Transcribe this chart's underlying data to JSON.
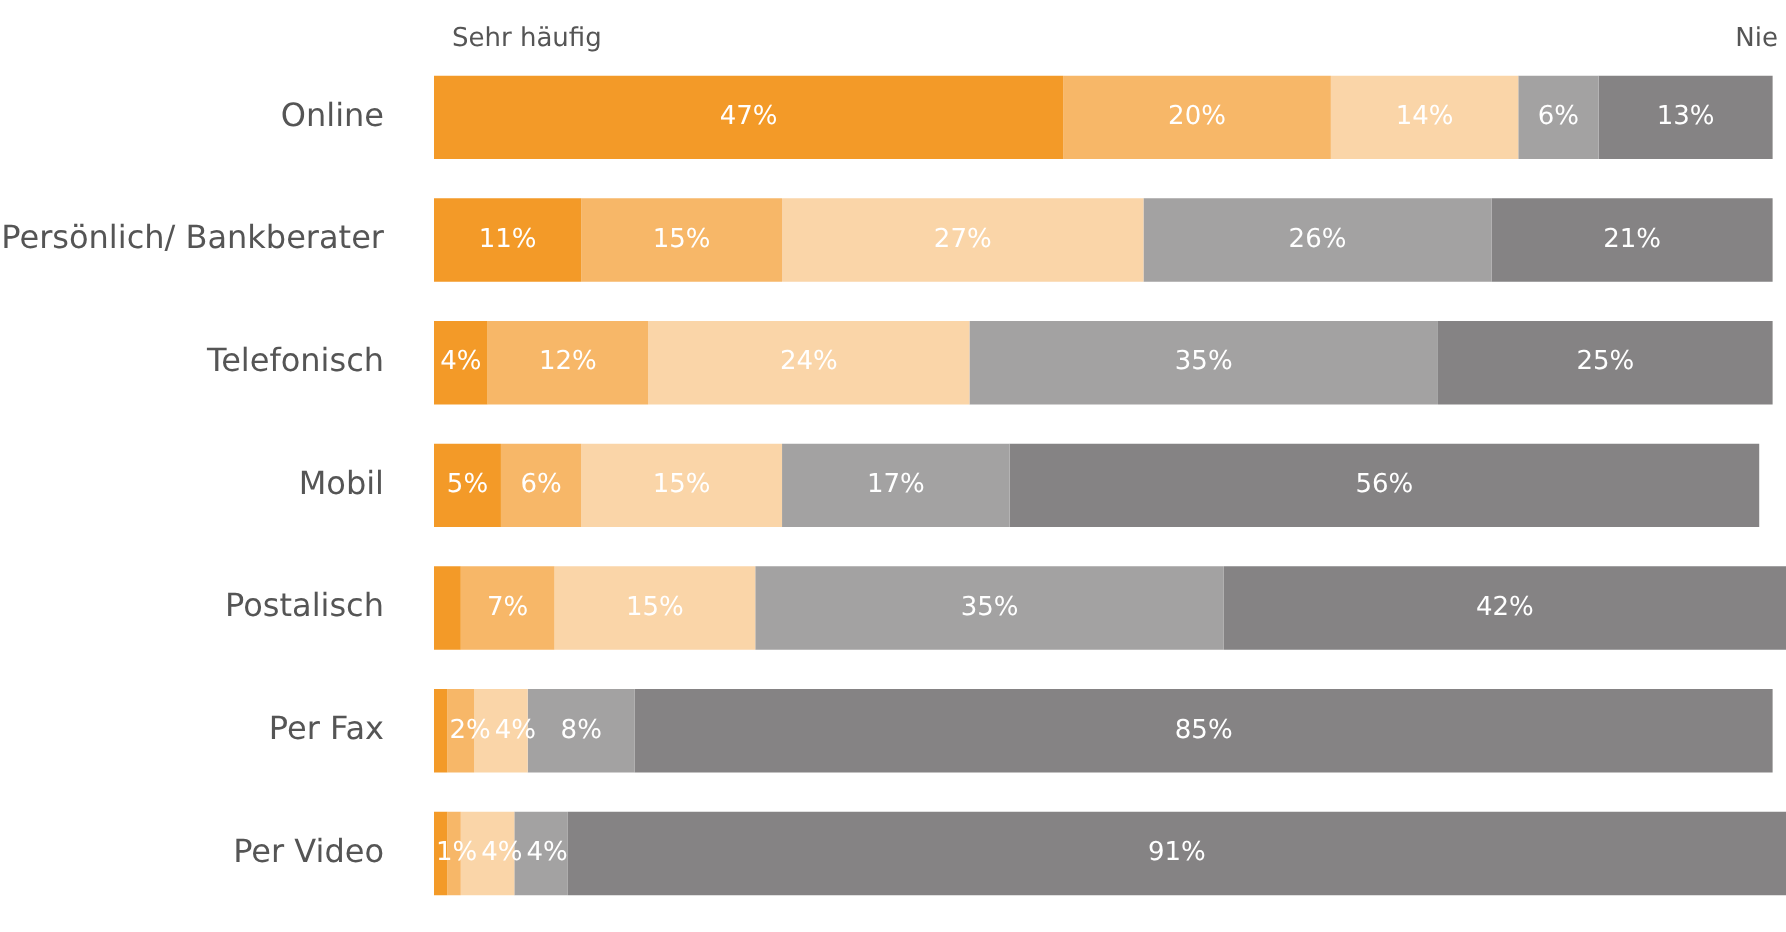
{
  "chart_data": {
    "type": "bar",
    "orientation": "horizontal",
    "stacked": true,
    "legend": false,
    "tick_labels": "y",
    "categories": [
      "Online",
      "Persönlich/ Bankberater",
      "Telefonisch",
      "Mobil",
      "Postalisch",
      "Per Fax",
      "Per Video"
    ],
    "annotations": [
      "Sehr häufig",
      "Nie"
    ],
    "series": [
      {
        "color": "#f39a28",
        "values": [
          47,
          11,
          4,
          5,
          2,
          1,
          1
        ],
        "value_labels": [
          "47%",
          "11%",
          "4%",
          "5%",
          null,
          null,
          "1%"
        ]
      },
      {
        "color": "#f7b768",
        "values": [
          20,
          15,
          12,
          6,
          7,
          2,
          1
        ],
        "value_labels": [
          "20%",
          "15%",
          "12%",
          "6%",
          "7%",
          "2%",
          null
        ]
      },
      {
        "color": "#fad5a8",
        "values": [
          14,
          27,
          24,
          15,
          15,
          4,
          4
        ],
        "value_labels": [
          "14%",
          "27%",
          "24%",
          "15%",
          "15%",
          "4%",
          "4%"
        ]
      },
      {
        "color": "#a3a2a2",
        "values": [
          6,
          26,
          35,
          17,
          35,
          8,
          4
        ],
        "value_labels": [
          "6%",
          "26%",
          "35%",
          "17%",
          "35%",
          "8%",
          "4%"
        ]
      },
      {
        "color": "#858384",
        "values": [
          13,
          21,
          25,
          56,
          42,
          85,
          91
        ],
        "value_labels": [
          "13%",
          "21%",
          "25%",
          "56%",
          "42%",
          "85%",
          "91%"
        ]
      }
    ]
  }
}
